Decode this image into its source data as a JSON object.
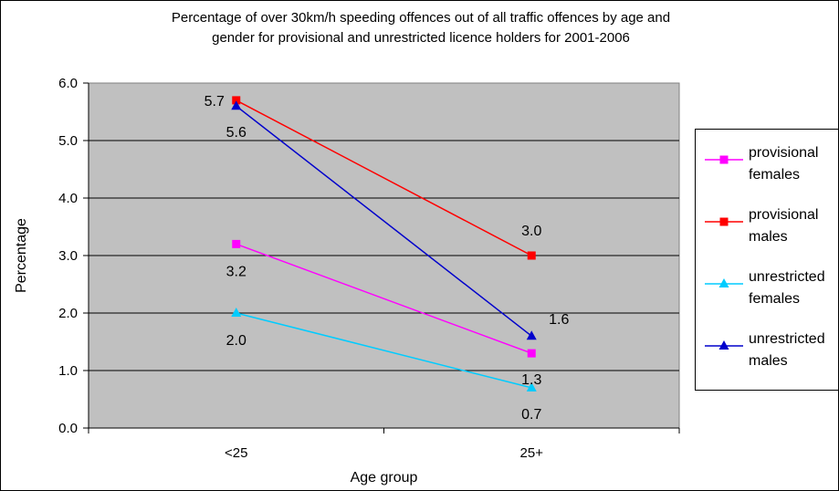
{
  "chart_data": {
    "type": "line",
    "title": "Percentage of over 30km/h speeding offences out of all traffic offences by age and\ngender for provisional and unrestricted licence holders for 2001-2006",
    "xlabel": "Age group",
    "ylabel": "Percentage",
    "categories": [
      "<25",
      "25+"
    ],
    "ylim": [
      0,
      6
    ],
    "yticks": [
      "0.0",
      "1.0",
      "2.0",
      "3.0",
      "4.0",
      "5.0",
      "6.0"
    ],
    "grid": true,
    "plot_background": "#c0c0c0",
    "legend_position": "right",
    "series": [
      {
        "name": "provisional females",
        "values": [
          3.2,
          1.3
        ],
        "labels": [
          "3.2",
          "1.3"
        ],
        "color": "#ff00ff",
        "marker": "square"
      },
      {
        "name": "provisional males",
        "values": [
          5.7,
          3.0
        ],
        "labels": [
          "5.7",
          "3.0"
        ],
        "color": "#ff0000",
        "marker": "square"
      },
      {
        "name": "unrestricted females",
        "values": [
          2.0,
          0.7
        ],
        "labels": [
          "2.0",
          "0.7"
        ],
        "color": "#00ccff",
        "marker": "triangle"
      },
      {
        "name": "unrestricted males",
        "values": [
          5.6,
          1.6
        ],
        "labels": [
          "5.6",
          "1.6"
        ],
        "color": "#0000cc",
        "marker": "triangle"
      }
    ]
  }
}
